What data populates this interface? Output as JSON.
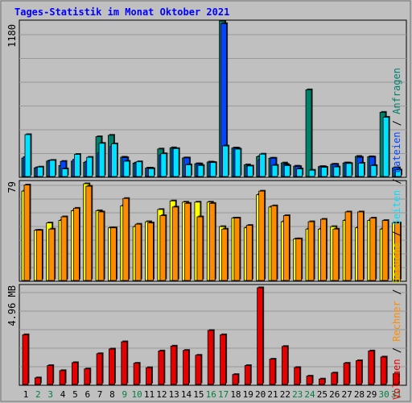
{
  "title": "Tages-Statistik im Monat Oktober 2021",
  "colors": {
    "background": "#C0C0C0",
    "title": "#0000FF",
    "grid": "#999999",
    "anfragen": "#00806B",
    "dateien": "#0047FF",
    "seiten": "#00E1FF",
    "besuche": "#FFFF00",
    "rechner": "#FF8C00",
    "volumen": "#E60000",
    "weekend_label": "#008040",
    "weekday_label": "#000000"
  },
  "legend": {
    "top": [
      "Anfragen",
      "Dateien",
      "Seiten",
      "Besuche",
      "Rechner",
      "Volumen"
    ],
    "separator": "/"
  },
  "chart_data": [
    {
      "type": "bar",
      "name": "hits-files-pages",
      "categories": [
        "1",
        "2",
        "3",
        "4",
        "5",
        "6",
        "7",
        "8",
        "9",
        "10",
        "11",
        "12",
        "13",
        "14",
        "15",
        "16",
        "17",
        "18",
        "19",
        "20",
        "21",
        "22",
        "23",
        "24",
        "25",
        "26",
        "27",
        "28",
        "29",
        "30",
        "31"
      ],
      "weekend_days": [
        "2",
        "3",
        "9",
        "10",
        "16",
        "17",
        "23",
        "24",
        "30",
        "31"
      ],
      "ylabel_top": "1180",
      "ylim": [
        0,
        1180
      ],
      "series": [
        {
          "name": "Anfragen",
          "values": [
            140,
            66,
            117,
            83,
            117,
            108,
            302,
            313,
            147,
            102,
            64,
            209,
            218,
            141,
            97,
            110,
            1180,
            216,
            89,
            151,
            139,
            103,
            79,
            658,
            75,
            93,
            103,
            153,
            150,
            487,
            66
          ]
        },
        {
          "name": "Dateien",
          "values": [
            150,
            68,
            120,
            115,
            130,
            115,
            178,
            228,
            143,
            102,
            64,
            164,
            209,
            141,
            96,
            108,
            1160,
            216,
            79,
            128,
            139,
            92,
            76,
            0,
            75,
            93,
            103,
            146,
            148,
            0,
            66
          ]
        },
        {
          "name": "Seiten",
          "values": [
            318,
            72,
            123,
            58,
            168,
            146,
            252,
            248,
            116,
            112,
            60,
            173,
            212,
            89,
            84,
            106,
            232,
            208,
            80,
            170,
            85,
            83,
            58,
            48,
            70,
            73,
            99,
            101,
            83,
            450,
            50
          ]
        }
      ]
    },
    {
      "type": "bar",
      "name": "visits-hosts",
      "categories": [
        "1",
        "2",
        "3",
        "4",
        "5",
        "6",
        "7",
        "8",
        "9",
        "10",
        "11",
        "12",
        "13",
        "14",
        "15",
        "16",
        "17",
        "18",
        "19",
        "20",
        "21",
        "22",
        "23",
        "24",
        "25",
        "26",
        "27",
        "28",
        "29",
        "30",
        "31"
      ],
      "ylabel_top": "79",
      "ylim": [
        0,
        79
      ],
      "series": [
        {
          "name": "Besuche",
          "values": [
            73,
            41,
            47,
            49,
            57,
            79,
            57,
            43,
            61,
            44,
            48,
            58,
            65,
            64,
            64,
            64,
            44,
            51,
            43,
            70,
            60,
            48,
            34,
            42,
            42,
            44,
            49,
            43,
            49,
            42,
            47
          ]
        },
        {
          "name": "Rechner",
          "values": [
            78,
            41,
            42,
            52,
            59,
            77,
            56,
            43,
            67,
            46,
            47,
            53,
            60,
            63,
            52,
            63,
            42,
            51,
            45,
            73,
            61,
            53,
            34,
            48,
            50,
            42,
            56,
            56,
            51,
            49,
            47
          ]
        }
      ]
    },
    {
      "type": "bar",
      "name": "volume",
      "categories": [
        "1",
        "2",
        "3",
        "4",
        "5",
        "6",
        "7",
        "8",
        "9",
        "10",
        "11",
        "12",
        "13",
        "14",
        "15",
        "16",
        "17",
        "18",
        "19",
        "20",
        "21",
        "22",
        "23",
        "24",
        "25",
        "26",
        "27",
        "28",
        "29",
        "30",
        "31"
      ],
      "ylabel_top": "4.96 MB",
      "ylim": [
        0,
        4.96
      ],
      "series": [
        {
          "name": "Volumen",
          "values": [
            2.55,
            0.34,
            0.97,
            0.71,
            1.12,
            0.8,
            1.58,
            1.82,
            2.19,
            1.09,
            0.86,
            1.72,
            1.97,
            1.75,
            1.5,
            2.77,
            2.55,
            0.51,
            0.97,
            4.96,
            1.3,
            1.95,
            0.87,
            0.43,
            0.28,
            0.59,
            1.09,
            1.22,
            1.72,
            1.41,
            0.55
          ]
        }
      ]
    }
  ]
}
